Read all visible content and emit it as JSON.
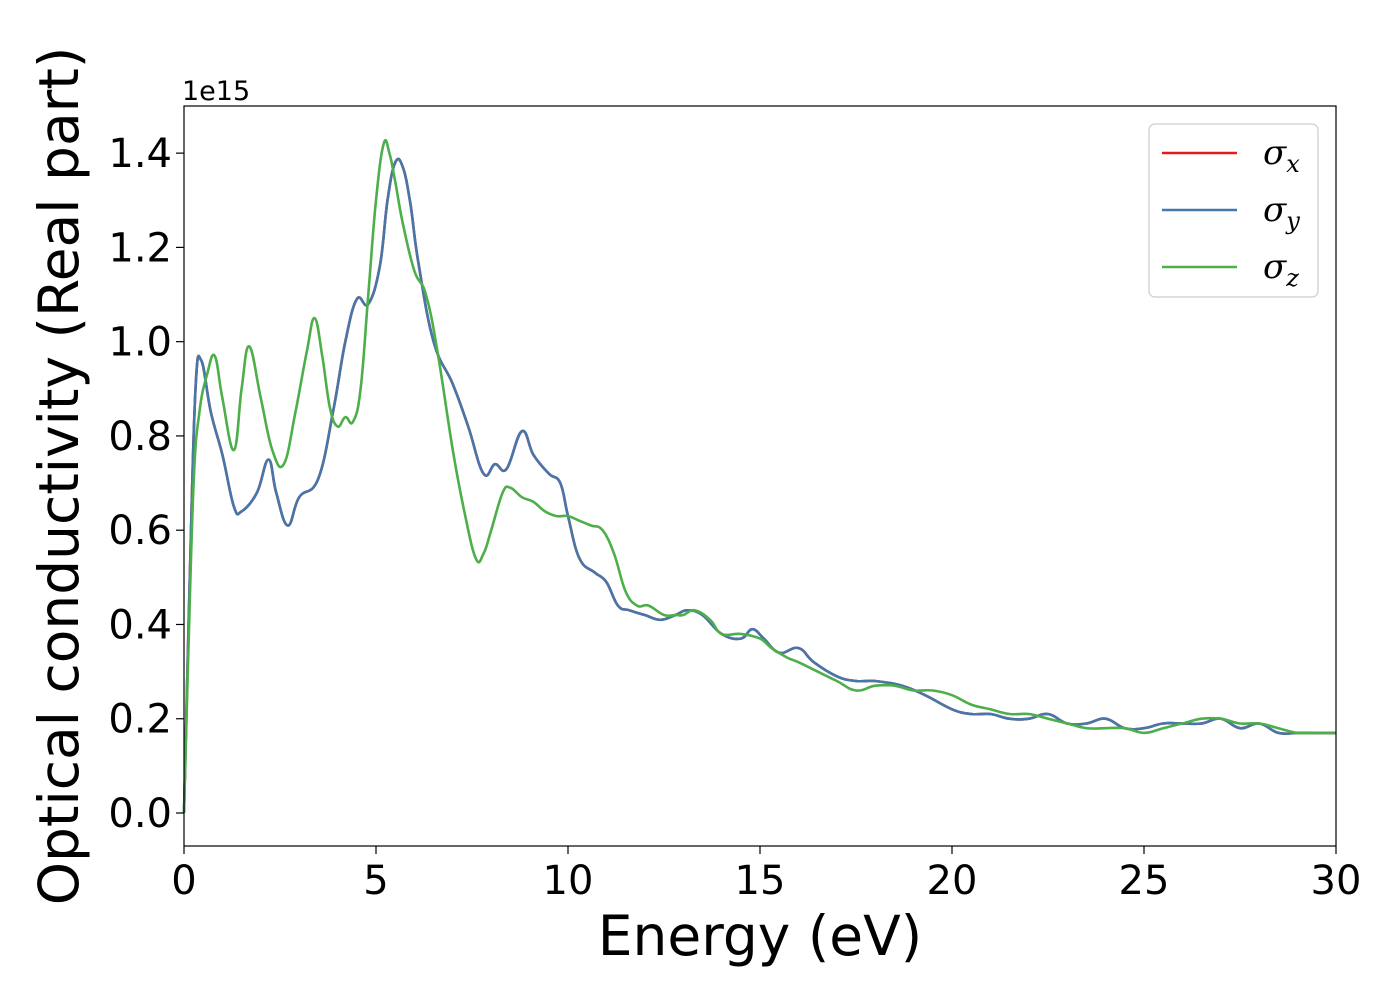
{
  "chart_data": {
    "type": "line",
    "title": "",
    "xlabel": "Energy (eV)",
    "ylabel": "Optical conductivity (Real part)",
    "y_offset_label": "1e15",
    "xlim": [
      0,
      30
    ],
    "ylim": [
      -0.07,
      1.5
    ],
    "xticks": [
      "0",
      "5",
      "10",
      "15",
      "20",
      "25",
      "30"
    ],
    "yticks": [
      "0.0",
      "0.2",
      "0.4",
      "0.6",
      "0.8",
      "1.0",
      "1.2",
      "1.4"
    ],
    "grid": false,
    "legend": "upper-right",
    "series": [
      {
        "name": "σ",
        "sub": "x",
        "color": "#e41a1c",
        "x": [
          0,
          0.15,
          0.3,
          0.45,
          0.7,
          1.0,
          1.3,
          1.5,
          1.9,
          2.2,
          2.4,
          2.7,
          3.0,
          3.5,
          3.9,
          4.2,
          4.5,
          4.8,
          5.1,
          5.3,
          5.5,
          5.7,
          5.9,
          6.1,
          6.5,
          7.0,
          7.4,
          7.8,
          8.1,
          8.4,
          8.8,
          9.1,
          9.5,
          9.8,
          10.0,
          10.3,
          10.7,
          11.0,
          11.3,
          11.6,
          12.0,
          12.4,
          12.8,
          13.1,
          13.5,
          14.0,
          14.5,
          14.8,
          15.1,
          15.5,
          16.0,
          16.4,
          17.0,
          17.5,
          18.0,
          18.7,
          19.3,
          20.0,
          20.5,
          21.0,
          21.5,
          22.0,
          22.5,
          23.0,
          23.5,
          24.0,
          24.5,
          25.0,
          25.5,
          26.0,
          26.5,
          27.0,
          27.5,
          28.0,
          28.5,
          29.0,
          29.5,
          30.0
        ],
        "values": [
          0,
          0.5,
          0.9,
          0.96,
          0.85,
          0.76,
          0.65,
          0.64,
          0.68,
          0.75,
          0.68,
          0.61,
          0.67,
          0.71,
          0.86,
          1.0,
          1.09,
          1.08,
          1.16,
          1.3,
          1.38,
          1.37,
          1.29,
          1.17,
          1.0,
          0.91,
          0.82,
          0.72,
          0.74,
          0.73,
          0.81,
          0.76,
          0.72,
          0.7,
          0.63,
          0.54,
          0.51,
          0.49,
          0.44,
          0.43,
          0.42,
          0.41,
          0.42,
          0.43,
          0.42,
          0.38,
          0.37,
          0.39,
          0.37,
          0.34,
          0.35,
          0.32,
          0.29,
          0.28,
          0.28,
          0.27,
          0.25,
          0.22,
          0.21,
          0.21,
          0.2,
          0.2,
          0.21,
          0.19,
          0.19,
          0.2,
          0.18,
          0.18,
          0.19,
          0.19,
          0.19,
          0.2,
          0.18,
          0.19,
          0.17,
          0.17,
          0.17,
          0.17
        ]
      },
      {
        "name": "σ",
        "sub": "y",
        "color": "#4577aa",
        "x": [
          0,
          0.15,
          0.3,
          0.45,
          0.7,
          1.0,
          1.3,
          1.5,
          1.9,
          2.2,
          2.4,
          2.7,
          3.0,
          3.5,
          3.9,
          4.2,
          4.5,
          4.8,
          5.1,
          5.3,
          5.5,
          5.7,
          5.9,
          6.1,
          6.5,
          7.0,
          7.4,
          7.8,
          8.1,
          8.4,
          8.8,
          9.1,
          9.5,
          9.8,
          10.0,
          10.3,
          10.7,
          11.0,
          11.3,
          11.6,
          12.0,
          12.4,
          12.8,
          13.1,
          13.5,
          14.0,
          14.5,
          14.8,
          15.1,
          15.5,
          16.0,
          16.4,
          17.0,
          17.5,
          18.0,
          18.7,
          19.3,
          20.0,
          20.5,
          21.0,
          21.5,
          22.0,
          22.5,
          23.0,
          23.5,
          24.0,
          24.5,
          25.0,
          25.5,
          26.0,
          26.5,
          27.0,
          27.5,
          28.0,
          28.5,
          29.0,
          29.5,
          30.0
        ],
        "values": [
          0,
          0.5,
          0.9,
          0.96,
          0.85,
          0.76,
          0.65,
          0.64,
          0.68,
          0.75,
          0.68,
          0.61,
          0.67,
          0.71,
          0.86,
          1.0,
          1.09,
          1.08,
          1.16,
          1.3,
          1.38,
          1.37,
          1.29,
          1.17,
          1.0,
          0.91,
          0.82,
          0.72,
          0.74,
          0.73,
          0.81,
          0.76,
          0.72,
          0.7,
          0.63,
          0.54,
          0.51,
          0.49,
          0.44,
          0.43,
          0.42,
          0.41,
          0.42,
          0.43,
          0.42,
          0.38,
          0.37,
          0.39,
          0.37,
          0.34,
          0.35,
          0.32,
          0.29,
          0.28,
          0.28,
          0.27,
          0.25,
          0.22,
          0.21,
          0.21,
          0.2,
          0.2,
          0.21,
          0.19,
          0.19,
          0.2,
          0.18,
          0.18,
          0.19,
          0.19,
          0.19,
          0.2,
          0.18,
          0.19,
          0.17,
          0.17,
          0.17,
          0.17
        ]
      },
      {
        "name": "σ",
        "sub": "z",
        "color": "#4daf4a",
        "x": [
          0,
          0.1,
          0.25,
          0.4,
          0.6,
          0.8,
          1.0,
          1.3,
          1.5,
          1.7,
          2.0,
          2.3,
          2.6,
          2.9,
          3.2,
          3.4,
          3.6,
          3.8,
          4.0,
          4.2,
          4.4,
          4.6,
          4.8,
          5.0,
          5.2,
          5.35,
          5.5,
          5.7,
          6.0,
          6.3,
          6.6,
          7.0,
          7.3,
          7.6,
          7.8,
          8.0,
          8.3,
          8.5,
          8.8,
          9.1,
          9.4,
          9.7,
          10.0,
          10.3,
          10.6,
          10.9,
          11.2,
          11.5,
          11.8,
          12.1,
          12.5,
          12.8,
          13.0,
          13.3,
          13.7,
          14.0,
          14.5,
          15.0,
          15.3,
          15.7,
          16.0,
          16.5,
          17.0,
          17.5,
          18.0,
          18.5,
          19.0,
          19.5,
          20.0,
          20.5,
          21.0,
          21.5,
          22.0,
          22.5,
          23.0,
          23.5,
          24.0,
          24.5,
          25.0,
          25.5,
          26.0,
          26.5,
          27.0,
          27.5,
          28.0,
          28.5,
          29.0,
          29.5,
          30.0
        ],
        "values": [
          0,
          0.3,
          0.7,
          0.85,
          0.93,
          0.97,
          0.88,
          0.77,
          0.9,
          0.99,
          0.88,
          0.77,
          0.74,
          0.85,
          0.98,
          1.05,
          0.97,
          0.86,
          0.82,
          0.84,
          0.83,
          0.9,
          1.1,
          1.3,
          1.42,
          1.4,
          1.34,
          1.25,
          1.15,
          1.1,
          0.98,
          0.77,
          0.64,
          0.54,
          0.55,
          0.6,
          0.68,
          0.69,
          0.67,
          0.66,
          0.64,
          0.63,
          0.63,
          0.62,
          0.61,
          0.6,
          0.55,
          0.47,
          0.44,
          0.44,
          0.42,
          0.42,
          0.42,
          0.43,
          0.41,
          0.38,
          0.38,
          0.37,
          0.35,
          0.33,
          0.32,
          0.3,
          0.28,
          0.26,
          0.27,
          0.27,
          0.26,
          0.26,
          0.25,
          0.23,
          0.22,
          0.21,
          0.21,
          0.2,
          0.19,
          0.18,
          0.18,
          0.18,
          0.17,
          0.18,
          0.19,
          0.2,
          0.2,
          0.19,
          0.19,
          0.18,
          0.17,
          0.17,
          0.17
        ]
      }
    ]
  }
}
